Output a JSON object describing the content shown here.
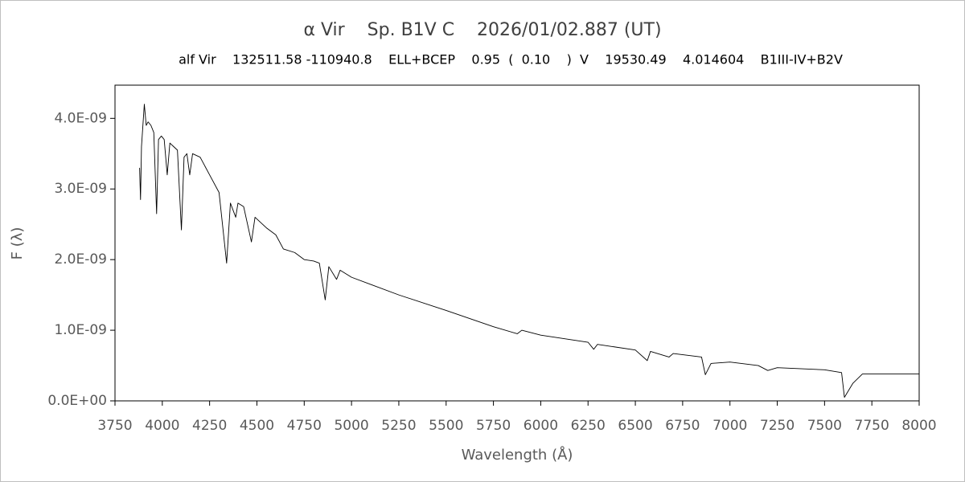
{
  "chart_data": {
    "type": "line",
    "title": "α Vir    Sp. B1V C    2026/01/02.887 (UT)",
    "subtitle": "alf Vir    132511.58 -110940.8    ELL+BCEP    0.95  (  0.10    )  V    19530.49    4.014604    B1III-IV+B2V",
    "x_label": "Wavelength (Å)",
    "y_label": "F (λ)",
    "color": "#000000",
    "x": [
      3880,
      3885,
      3890,
      3900,
      3905,
      3915,
      3925,
      3940,
      3955,
      3970,
      3980,
      3995,
      4010,
      4026,
      4040,
      4060,
      4080,
      4101,
      4115,
      4130,
      4145,
      4160,
      4200,
      4250,
      4300,
      4340,
      4360,
      4388,
      4400,
      4430,
      4471,
      4490,
      4550,
      4600,
      4640,
      4700,
      4750,
      4800,
      4830,
      4861,
      4880,
      4921,
      4940,
      5000,
      5100,
      5250,
      5500,
      5750,
      5876,
      5900,
      6000,
      6250,
      6280,
      6300,
      6500,
      6563,
      6580,
      6678,
      6700,
      6850,
      6870,
      6900,
      7000,
      7150,
      7200,
      7250,
      7500,
      7590,
      7605,
      7650,
      7700,
      8000
    ],
    "values": [
      3.3e-09,
      2.85e-09,
      3.6e-09,
      4e-09,
      4.2e-09,
      3.9e-09,
      3.95e-09,
      3.9e-09,
      3.8e-09,
      2.65e-09,
      3.7e-09,
      3.75e-09,
      3.7e-09,
      3.2e-09,
      3.65e-09,
      3.6e-09,
      3.55e-09,
      2.42e-09,
      3.45e-09,
      3.5e-09,
      3.2e-09,
      3.5e-09,
      3.45e-09,
      3.2e-09,
      2.95e-09,
      1.95e-09,
      2.8e-09,
      2.6e-09,
      2.8e-09,
      2.75e-09,
      2.25e-09,
      2.6e-09,
      2.45e-09,
      2.35e-09,
      2.15e-09,
      2.1e-09,
      2e-09,
      1.98e-09,
      1.95e-09,
      1.43e-09,
      1.9e-09,
      1.72e-09,
      1.85e-09,
      1.75e-09,
      1.65e-09,
      1.5e-09,
      1.28e-09,
      1.05e-09,
      9.5e-10,
      1e-09,
      9.3e-10,
      8.3e-10,
      7.3e-10,
      8e-10,
      7.2e-10,
      5.7e-10,
      7e-10,
      6.2e-10,
      6.7e-10,
      6.2e-10,
      3.7e-10,
      5.3e-10,
      5.5e-10,
      5e-10,
      4.3e-10,
      4.7e-10,
      4.4e-10,
      4e-10,
      5e-11,
      2.5e-10,
      3.8e-10,
      3.8e-10
    ],
    "xlim": [
      3750,
      8000
    ],
    "xticks": [
      3750,
      4000,
      4250,
      4500,
      4750,
      5000,
      5250,
      5500,
      5750,
      6000,
      6250,
      6500,
      6750,
      7000,
      7250,
      7500,
      7750,
      8000
    ],
    "ylim": [
      0,
      4.47e-09
    ],
    "yticks": [
      {
        "value": 0,
        "label": "0.0E+00"
      },
      {
        "value": 1e-09,
        "label": "1.0E-09"
      },
      {
        "value": 2e-09,
        "label": "2.0E-09"
      },
      {
        "value": 3e-09,
        "label": "3.0E-09"
      },
      {
        "value": 4e-09,
        "label": "4.0E-09"
      }
    ],
    "grid": false
  }
}
